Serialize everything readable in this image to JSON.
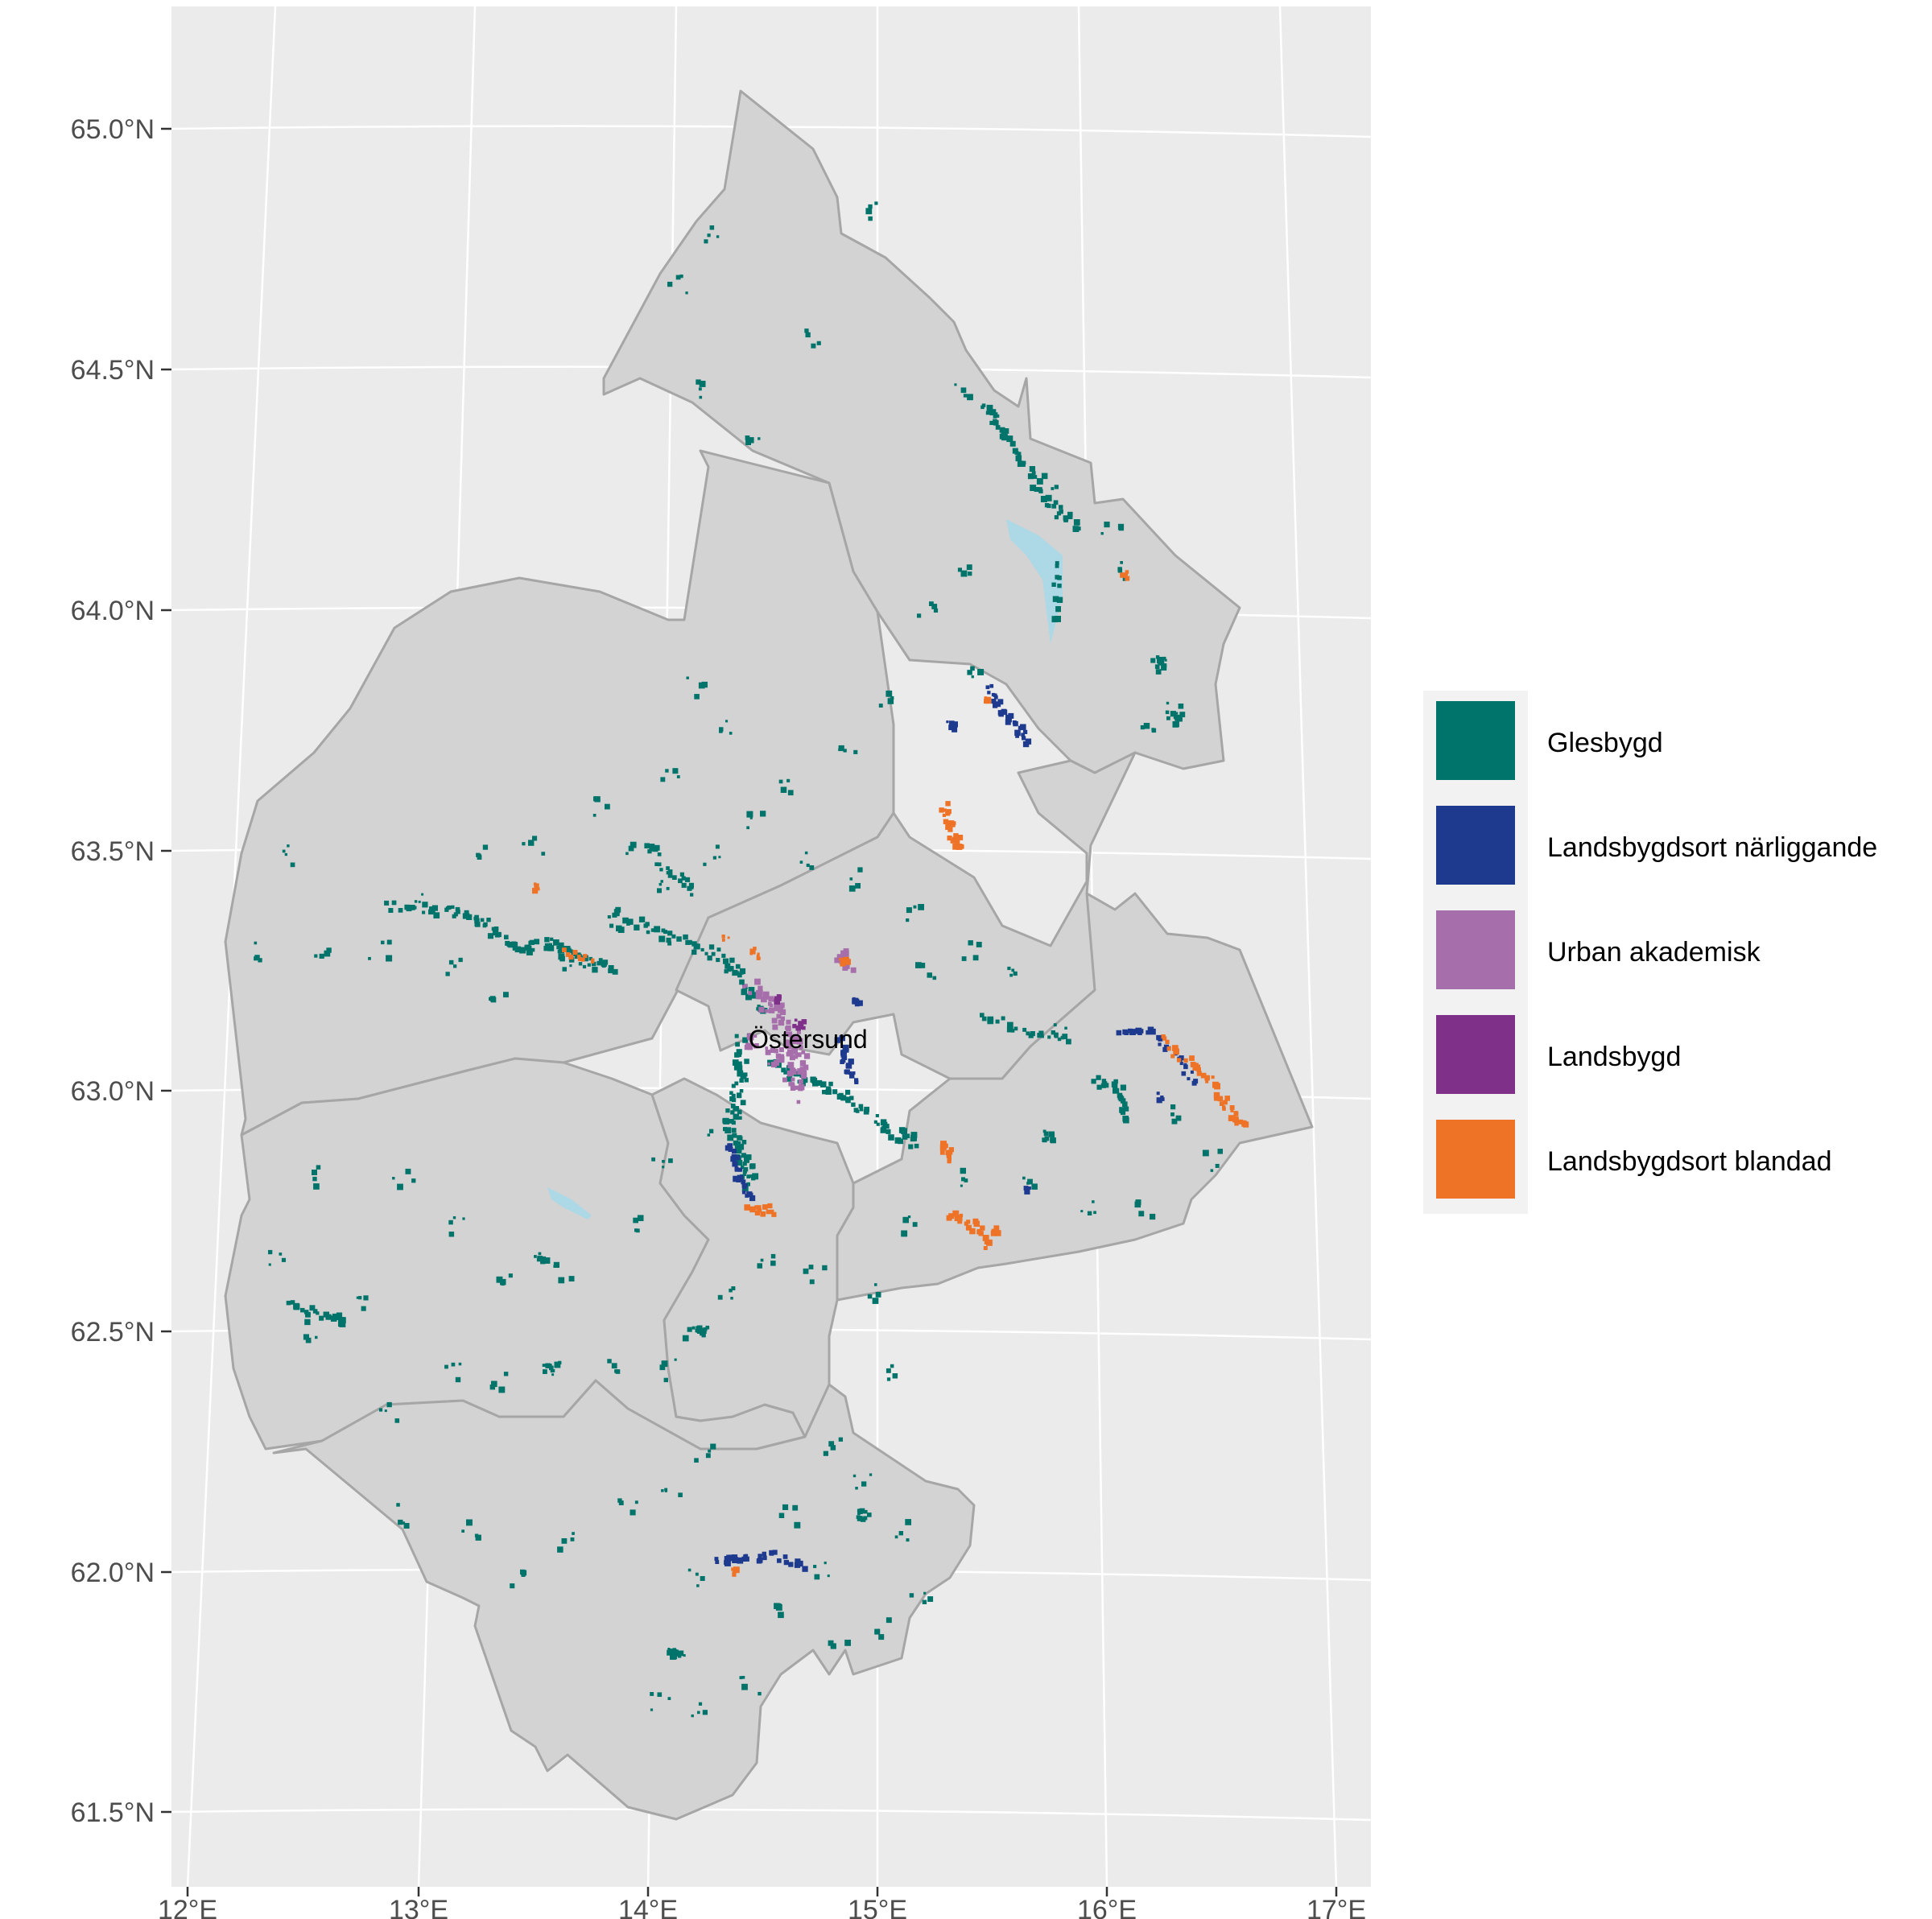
{
  "map": {
    "background": "#ebebeb",
    "grid_color": "#ffffff",
    "region_fill": "#d3d3d3",
    "region_stroke": "#a6a6a6",
    "water_color": "#add8e6",
    "y_labels": [
      "65.0°N",
      "64.5°N",
      "64.0°N",
      "63.5°N",
      "63.0°N",
      "62.5°N",
      "62.0°N",
      "61.5°N"
    ],
    "x_labels": [
      "12°E",
      "13°E",
      "14°E",
      "15°E",
      "16°E",
      "17°E"
    ],
    "city_label": "Östersund"
  },
  "legend": {
    "items": [
      {
        "label": "Glesbygd",
        "color": "#00736a"
      },
      {
        "label": "Landsbygdsort närliggande",
        "color": "#1e3a8f"
      },
      {
        "label": "Urban akademisk",
        "color": "#a66fab"
      },
      {
        "label": "Landsbygd",
        "color": "#7f318a"
      },
      {
        "label": "Landsbygdsort blandad",
        "color": "#ee7326"
      }
    ]
  }
}
